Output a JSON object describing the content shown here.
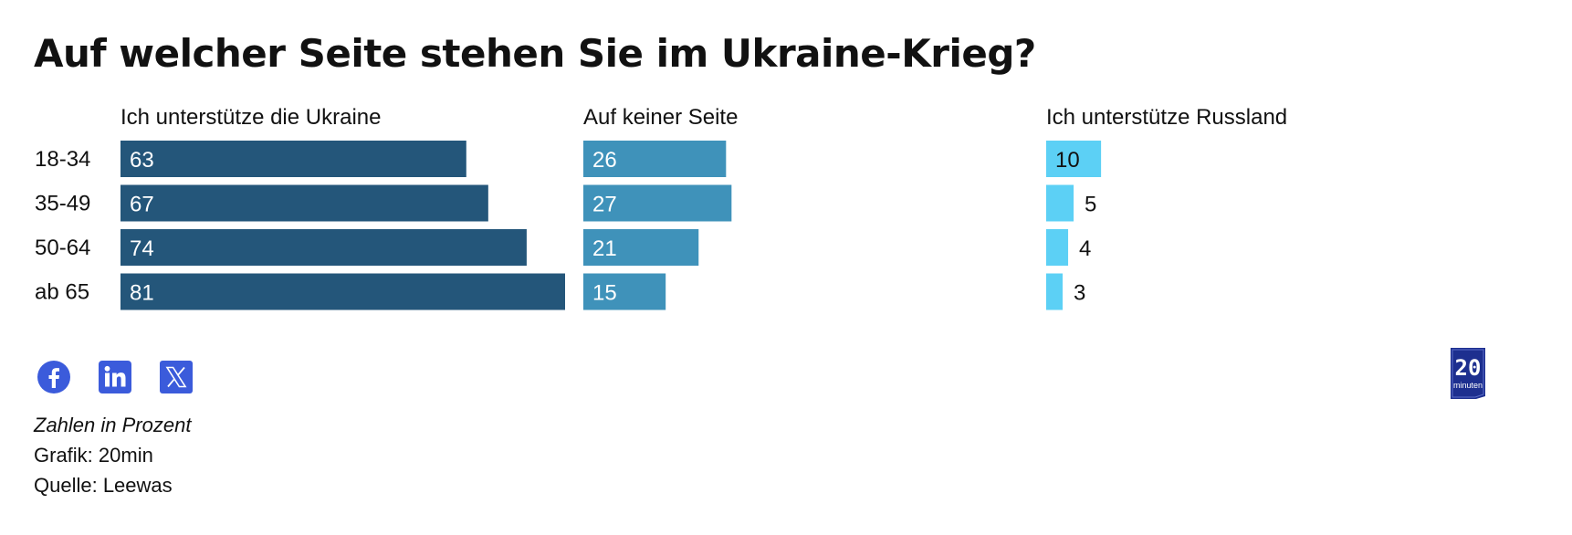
{
  "title": "Auf welcher Seite stehen Sie im Ukraine-Krieg?",
  "chart_data": {
    "type": "bar",
    "categories": [
      "18-34",
      "35-49",
      "50-64",
      "ab 65"
    ],
    "series": [
      {
        "name": "Ich unterstütze die Ukraine",
        "values": [
          63,
          67,
          74,
          81
        ],
        "color": "#24567a"
      },
      {
        "name": "Auf keiner Seite",
        "values": [
          26,
          27,
          21,
          15
        ],
        "color": "#3f92ba"
      },
      {
        "name": "Ich unterstütze Russland",
        "values": [
          10,
          5,
          4,
          3
        ],
        "color": "#5cd0f5"
      }
    ],
    "xlim": [
      0,
      81
    ],
    "grid": false,
    "legend": "none"
  },
  "social": {
    "facebook_icon": "facebook-icon",
    "linkedin_icon": "linkedin-icon",
    "x_icon": "x-icon",
    "icon_color": "#3b5bdb"
  },
  "notes": {
    "unit": "Zahlen in Prozent",
    "graphic": "Grafik: 20min",
    "source": "Quelle: Leewas"
  },
  "logo": {
    "name": "20-minuten-logo",
    "text_top": "20",
    "text_bottom": "minuten",
    "color": "#1d2f8f"
  }
}
